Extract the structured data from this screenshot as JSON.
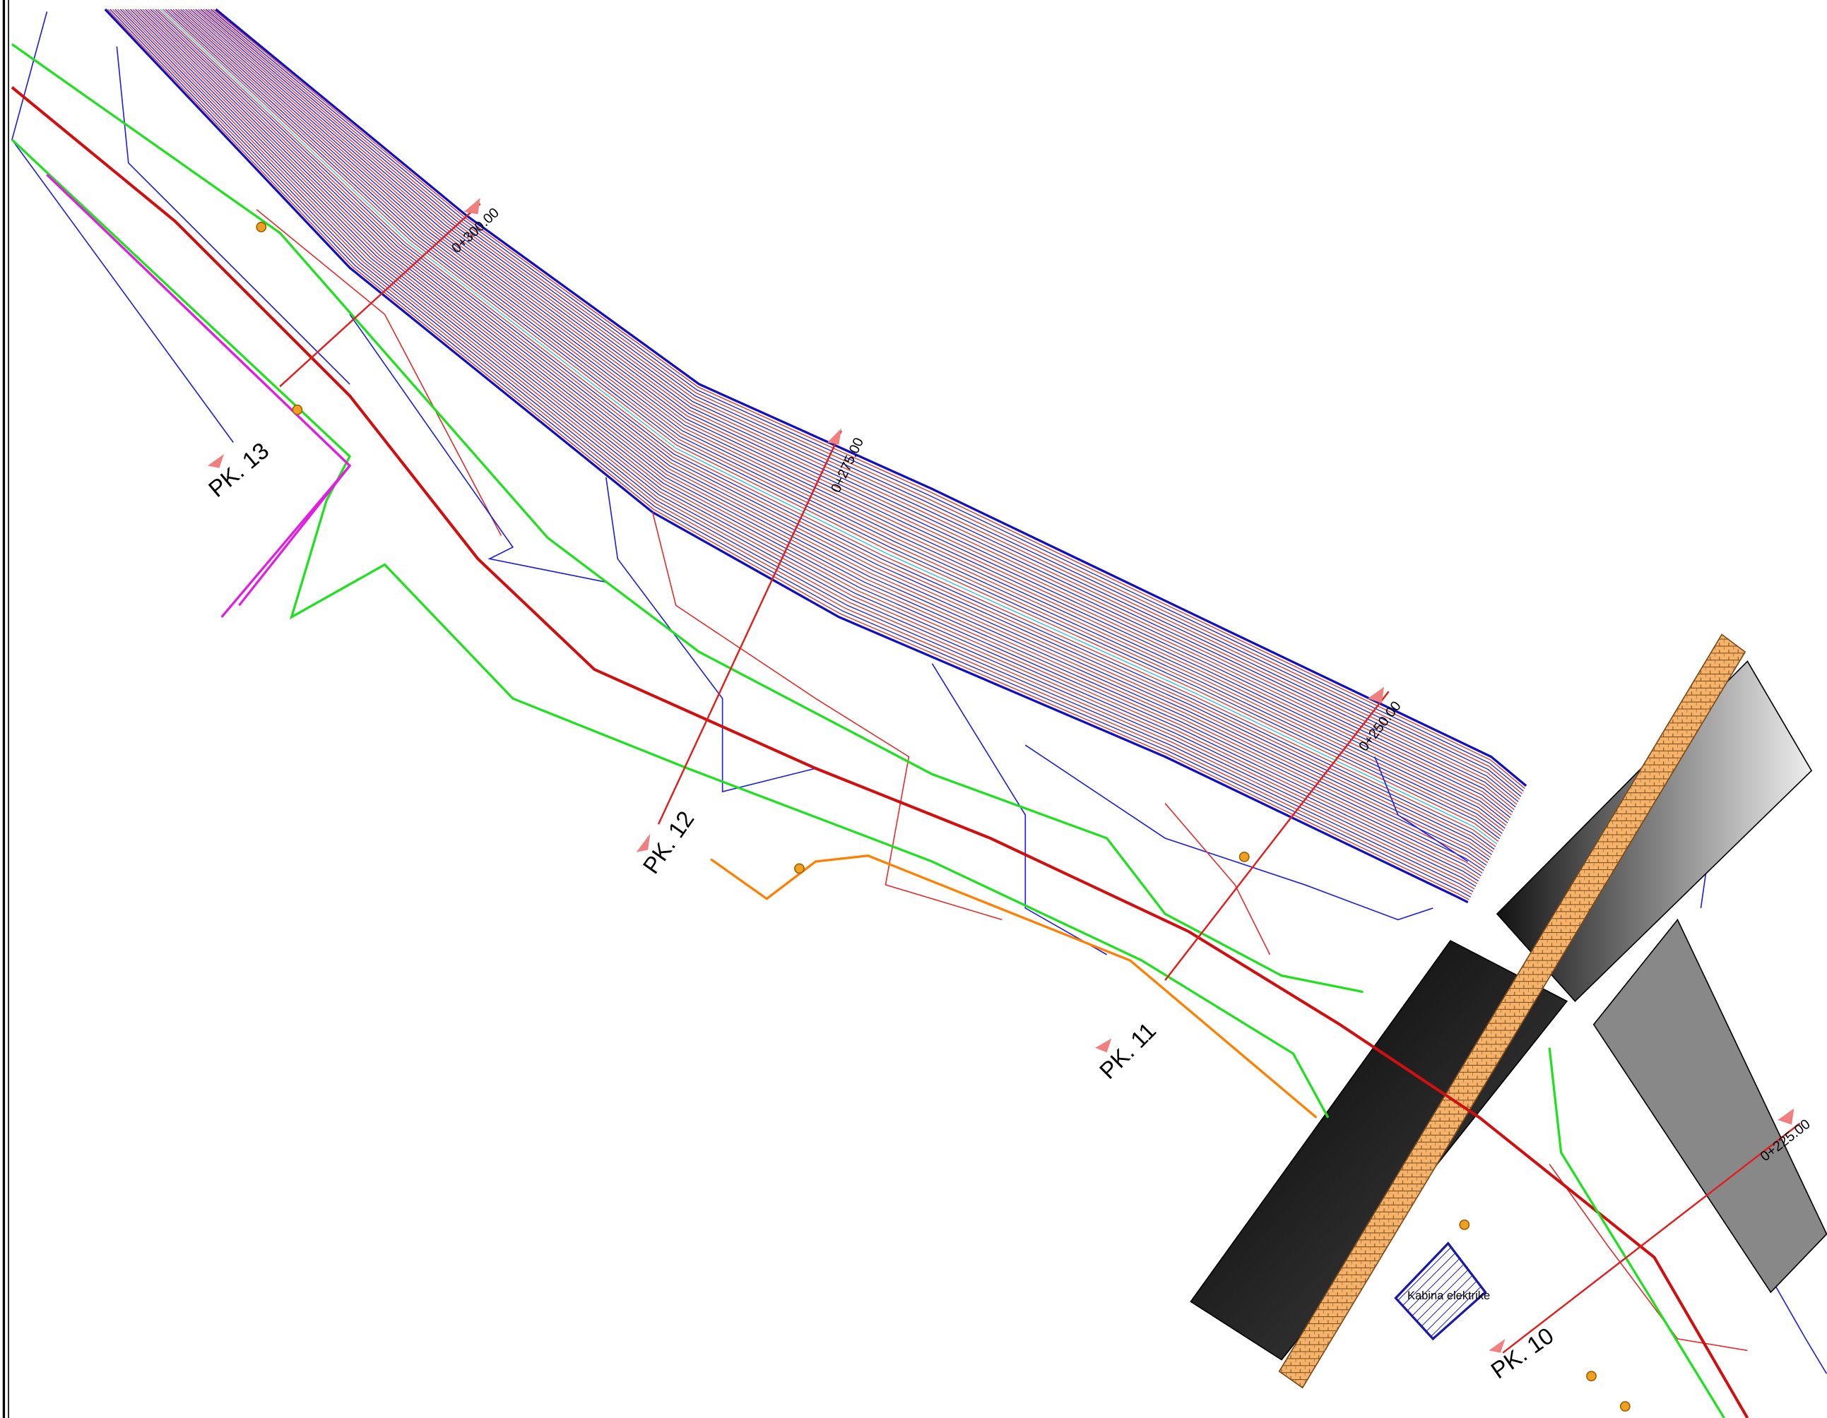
{
  "profiles": [
    "PK. 13",
    "PK. 12",
    "PK. 11",
    "PK. 10"
  ],
  "stations": [
    "0+300.00",
    "0+275.00",
    "0+250.00",
    "0+225.00"
  ],
  "building": "Kabina elektrike"
}
